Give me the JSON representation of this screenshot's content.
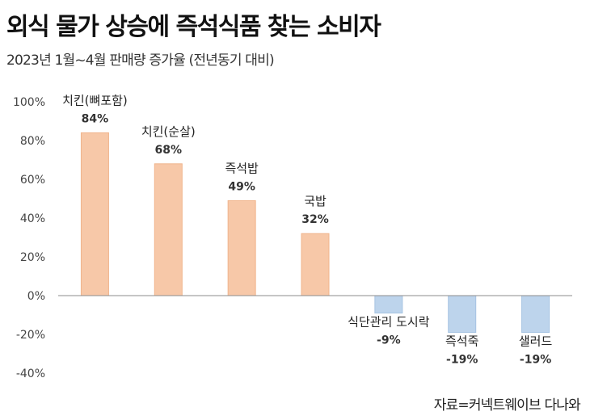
{
  "header": {
    "title": "외식 물가 상승에 즉석식품 찾는 소비자",
    "subtitle": "2023년 1월~4월 판매량 증가율 (전년동기 대비)"
  },
  "footer": {
    "source": "자료=커넥트웨이브 다나와"
  },
  "chart_data": {
    "type": "bar",
    "categories": [
      "치킨(뼈포함)",
      "치킨(순살)",
      "즉석밥",
      "국밥",
      "식단관리 도시락",
      "즉석죽",
      "샐러드"
    ],
    "values": [
      84,
      68,
      49,
      32,
      -9,
      -19,
      -19
    ],
    "value_labels": [
      "84%",
      "68%",
      "49%",
      "32%",
      "-9%",
      "-19%",
      "-19%"
    ],
    "yticks": [
      "100%",
      "80%",
      "60%",
      "40%",
      "20%",
      "0%",
      "-20%",
      "-40%"
    ],
    "ylim": [
      -40,
      100
    ],
    "grid": false,
    "colors": {
      "positive": "#f7c8a8",
      "positive_edge": "#f0b48c",
      "negative": "#bdd4ec",
      "negative_edge": "#a6c3e2",
      "axis": "#8c8c8c"
    }
  }
}
